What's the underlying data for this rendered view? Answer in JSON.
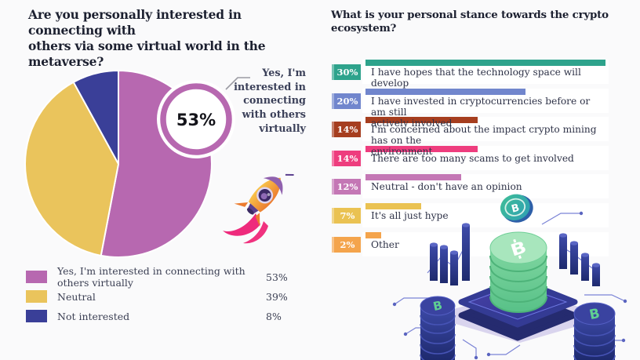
{
  "page": {
    "background": "#fafafb"
  },
  "left_chart": {
    "title": "Are you personally interested in connecting with\nothers via some virtual world in the metaverse?",
    "callout_value": "53%",
    "callout_label": "Yes, I'm\ninterested in\nconnecting\nwith others\nvirtually",
    "legend": [
      {
        "label": "Yes, I'm interested in connecting with others virtually",
        "value": "53%"
      },
      {
        "label": "Neutral",
        "value": "39%"
      },
      {
        "label": "Not interested",
        "value": "8%"
      }
    ]
  },
  "right_chart": {
    "title": "What is your personal stance towards the crypto ecosystem?",
    "rows": [
      {
        "pct": "30%",
        "label": "I have hopes that the technology space will\ndevelop"
      },
      {
        "pct": "20%",
        "label": "I have invested in cryptocurrencies before or am still\nactively involved"
      },
      {
        "pct": "14%",
        "label": "I'm concerned about the impact crypto mining has on the\nenvironment"
      },
      {
        "pct": "14%",
        "label": "There are too many scams to get involved"
      },
      {
        "pct": "12%",
        "label": "Neutral - don't have an opinion"
      },
      {
        "pct": "7%",
        "label": "It's all just hype"
      },
      {
        "pct": "2%",
        "label": "Other"
      }
    ]
  },
  "chart_data": [
    {
      "type": "pie",
      "title": "Are you personally interested in connecting with others via some virtual world in the metaverse?",
      "labels": [
        "Yes, I'm interested in connecting with others virtually",
        "Neutral",
        "Not interested"
      ],
      "values": [
        53,
        39,
        8
      ],
      "unit": "%",
      "colors": [
        "#b768b0",
        "#eac45c",
        "#3a3f98"
      ],
      "start_angle": "12 o'clock, clockwise",
      "legend_position": "bottom-left",
      "annotation": "donut badge over first slice reading 53%"
    },
    {
      "type": "bar",
      "orientation": "horizontal",
      "title": "What is your personal stance towards the crypto ecosystem?",
      "categories": [
        "I have hopes that the technology space will develop",
        "I have invested in cryptocurrencies before or am still actively involved",
        "I'm concerned about the impact crypto mining has on the environment",
        "There are too many scams to get involved",
        "Neutral - don't have an opinion",
        "It's all just hype",
        "Other"
      ],
      "values": [
        30,
        20,
        14,
        14,
        12,
        7,
        2
      ],
      "value_labels": [
        "30%",
        "20%",
        "14%",
        "14%",
        "12%",
        "7%",
        "2%"
      ],
      "unit": "%",
      "xlim": [
        0,
        30
      ],
      "colors": [
        "#2ea38c",
        "#7186cd",
        "#a63e1f",
        "#ee3d7e",
        "#c477b5",
        "#eac252",
        "#f4a44c"
      ],
      "grid": false,
      "legend_position": "none"
    }
  ],
  "icons": {
    "bitcoin_glyph": "B",
    "rocket": "rocket-with-astronaut-illustration",
    "crypto_scene": "crypto-coins-on-circuit-platform-illustration"
  }
}
